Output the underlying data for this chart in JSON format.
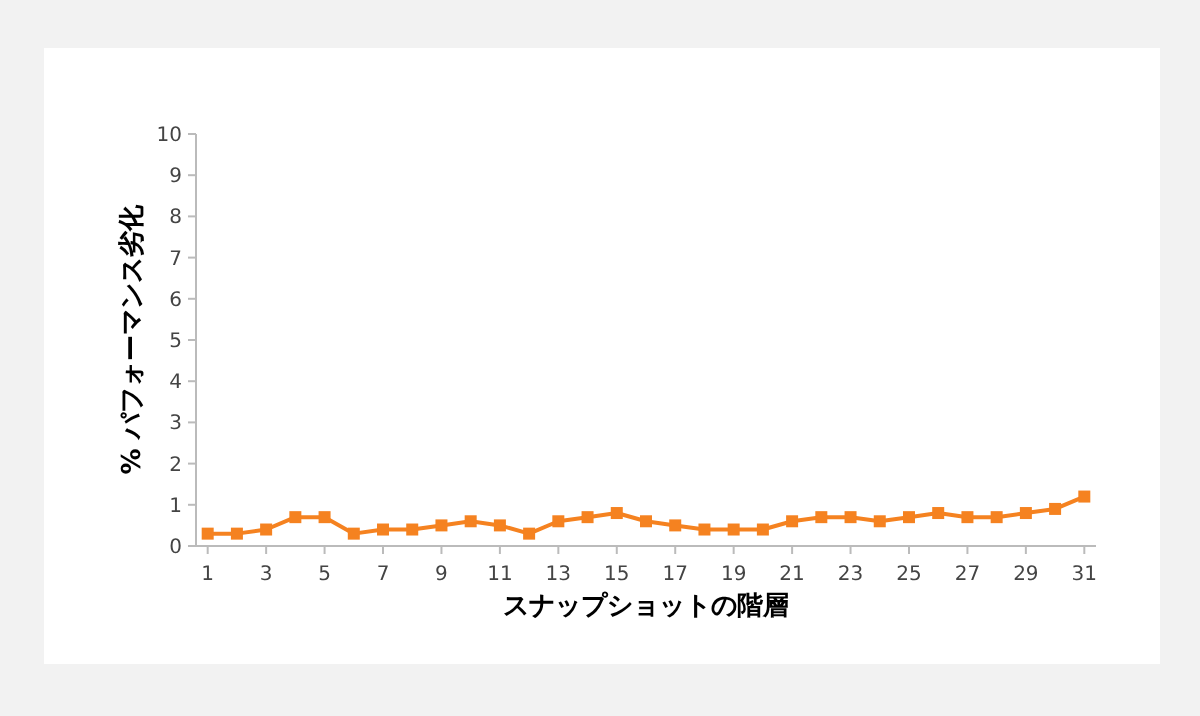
{
  "chart_data": {
    "type": "line",
    "xlabel": "スナップショットの階層",
    "ylabel": "% パフォーマンス劣化",
    "x": [
      1,
      2,
      3,
      4,
      5,
      6,
      7,
      8,
      9,
      10,
      11,
      12,
      13,
      14,
      15,
      16,
      17,
      18,
      19,
      20,
      21,
      22,
      23,
      24,
      25,
      26,
      27,
      28,
      29,
      30,
      31
    ],
    "series": [
      {
        "color": "#f58220",
        "values": [
          0.3,
          0.3,
          0.4,
          0.7,
          0.7,
          0.3,
          0.4,
          0.4,
          0.5,
          0.6,
          0.5,
          0.3,
          0.6,
          0.7,
          0.8,
          0.6,
          0.5,
          0.4,
          0.4,
          0.4,
          0.6,
          0.7,
          0.7,
          0.6,
          0.7,
          0.8,
          0.7,
          0.7,
          0.8,
          0.9,
          1.2
        ]
      }
    ],
    "xlim": [
      0.6,
      31.4
    ],
    "xticks": [
      1,
      3,
      5,
      7,
      9,
      11,
      13,
      15,
      17,
      19,
      21,
      23,
      25,
      27,
      29,
      31
    ],
    "ylim": [
      0,
      10
    ],
    "yticks": [
      0,
      1,
      2,
      3,
      4,
      5,
      6,
      7,
      8,
      9,
      10
    ],
    "marker": "square",
    "line_style": "solid"
  }
}
